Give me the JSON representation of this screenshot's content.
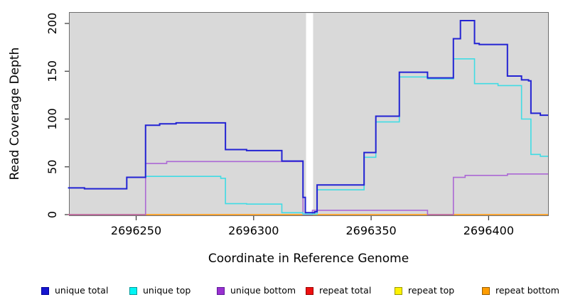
{
  "figure": {
    "background": "#ffffff",
    "panel_background": "#d9d9d9",
    "panel_border_color": "#6e6e6e",
    "gap_band_color": "#ffffff"
  },
  "axes": {
    "x_label": "Coordinate in Reference Genome",
    "y_label": "Read Coverage Depth",
    "x_ticks": [
      2696250,
      2696300,
      2696350,
      2696400
    ],
    "y_ticks": [
      0,
      50,
      100,
      150,
      200
    ]
  },
  "chart_data": {
    "type": "line",
    "step": true,
    "title": "",
    "xlabel": "Coordinate in Reference Genome",
    "ylabel": "Read Coverage Depth",
    "xlim": [
      2696221.4,
      2696425.3
    ],
    "ylim": [
      0,
      212
    ],
    "grid": false,
    "legend_position": "bottom",
    "gap_band": {
      "x_start": 2696322.3,
      "x_end": 2696325.3
    },
    "series": [
      {
        "name": "repeat total",
        "color": "#e32222",
        "width": 1.2,
        "points": [
          [
            2696221,
            0
          ]
        ]
      },
      {
        "name": "repeat top",
        "color": "#ffff33",
        "width": 1.2,
        "points": [
          [
            2696221,
            0
          ]
        ]
      },
      {
        "name": "repeat bottom",
        "color": "#ff9d1e",
        "width": 1.6,
        "points": [
          [
            2696221,
            0
          ]
        ]
      },
      {
        "name": "unique bottom",
        "color": "rgba(163,85,211,0.85)",
        "width": 1.6,
        "points": [
          [
            2696221,
            0
          ],
          [
            2696254,
            53.5
          ],
          [
            2696263,
            55.5
          ],
          [
            2696321,
            0
          ],
          [
            2696325,
            4.5
          ],
          [
            2696374,
            0
          ],
          [
            2696385,
            39
          ],
          [
            2696390,
            41
          ],
          [
            2696408,
            42.5
          ]
        ]
      },
      {
        "name": "unique top",
        "color": "#40dce4",
        "width": 1.6,
        "points": [
          [
            2696221,
            28
          ],
          [
            2696228,
            27
          ],
          [
            2696246,
            39
          ],
          [
            2696254,
            40
          ],
          [
            2696286,
            38
          ],
          [
            2696288,
            11.5
          ],
          [
            2696297,
            11
          ],
          [
            2696312,
            2
          ],
          [
            2696321,
            0.5
          ],
          [
            2696327,
            26
          ],
          [
            2696347,
            60
          ],
          [
            2696352,
            97
          ],
          [
            2696362,
            144
          ],
          [
            2696374,
            142
          ],
          [
            2696385,
            163
          ],
          [
            2696394,
            137
          ],
          [
            2696404,
            135
          ],
          [
            2696414,
            100
          ],
          [
            2696418,
            63
          ],
          [
            2696422,
            61
          ]
        ]
      },
      {
        "name": "unique total",
        "color": "#2323d3",
        "width": 2,
        "points": [
          [
            2696221,
            28
          ],
          [
            2696228,
            27
          ],
          [
            2696246,
            39
          ],
          [
            2696254,
            93.5
          ],
          [
            2696260,
            95
          ],
          [
            2696267,
            96
          ],
          [
            2696288,
            68
          ],
          [
            2696297,
            67
          ],
          [
            2696312,
            56
          ],
          [
            2696321,
            18
          ],
          [
            2696322,
            2
          ],
          [
            2696326,
            3
          ],
          [
            2696327,
            31
          ],
          [
            2696347,
            65
          ],
          [
            2696352,
            103
          ],
          [
            2696362,
            149
          ],
          [
            2696374,
            143
          ],
          [
            2696385,
            184
          ],
          [
            2696388,
            203
          ],
          [
            2696394,
            179
          ],
          [
            2696396,
            178
          ],
          [
            2696408,
            145
          ],
          [
            2696414,
            141
          ],
          [
            2696417,
            140
          ],
          [
            2696418,
            106
          ],
          [
            2696422,
            104
          ]
        ]
      }
    ],
    "legend": [
      {
        "label": "unique total",
        "fill": "#1515cf",
        "border": "#000099"
      },
      {
        "label": "unique top",
        "fill": "#00f5f5",
        "border": "#009999"
      },
      {
        "label": "unique bottom",
        "fill": "#9a30d0",
        "border": "#5c1a99"
      },
      {
        "label": "repeat total",
        "fill": "#ee1010",
        "border": "#990000"
      },
      {
        "label": "repeat top",
        "fill": "#fff200",
        "border": "#999900"
      },
      {
        "label": "repeat bottom",
        "fill": "#ff9d00",
        "border": "#995c00"
      }
    ]
  }
}
